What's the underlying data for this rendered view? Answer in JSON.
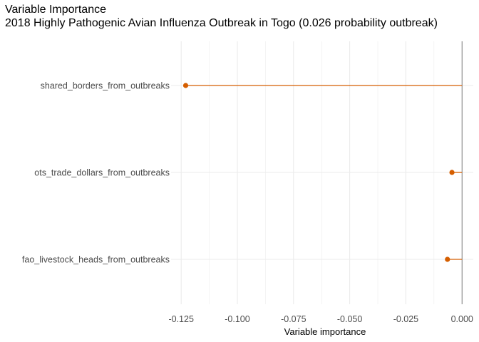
{
  "chart_data": {
    "type": "lollipop",
    "title": "Variable Importance",
    "subtitle": "2018 Highly Pathogenic Avian Influenza Outbreak in Togo (0.026 probability outbreak)",
    "xlabel": "Variable importance",
    "ylabel": "",
    "categories": [
      "shared_borders_from_outbreaks",
      "ots_trade_dollars_from_outbreaks",
      "fao_livestock_heads_from_outbreaks"
    ],
    "values": [
      -0.123,
      -0.0045,
      -0.0065
    ],
    "xlim": [
      -0.1295,
      0.005
    ],
    "x_ticks": [
      -0.125,
      -0.1,
      -0.075,
      -0.05,
      -0.025,
      0.0
    ],
    "x_tick_labels": [
      "-0.125",
      "-0.100",
      "-0.075",
      "-0.050",
      "-0.025",
      "0.000"
    ],
    "reference_line_x": 0.0,
    "grid": true,
    "legend": "none",
    "colors": {
      "point": "#d55e00",
      "stem": "#d55e00",
      "grid": "#ebebeb",
      "zero_line": "#7f7f7f",
      "text": "#4d4d4d"
    }
  }
}
